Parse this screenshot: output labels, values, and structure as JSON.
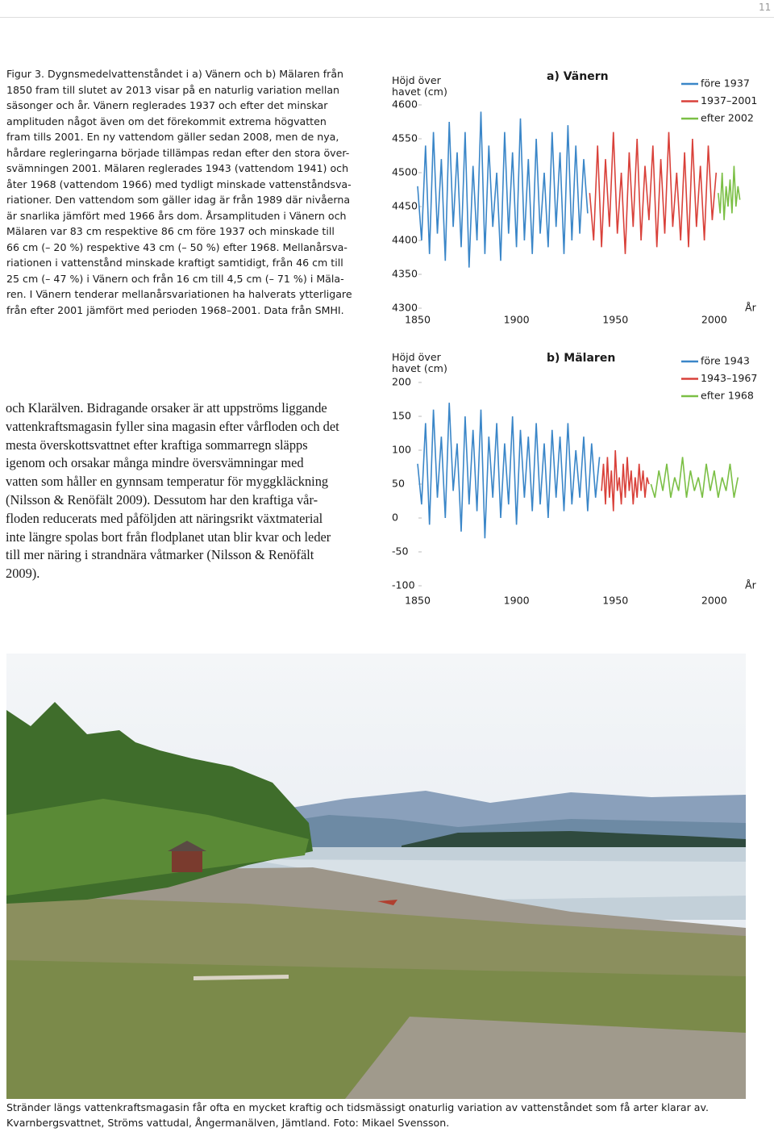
{
  "page_number": "11",
  "figure_caption": [
    "Figur 3. Dygnsmedelvattenståndet i a) Vänern och b) Mälaren från",
    "1850 fram till slutet av 2013 visar på en naturlig variation mellan",
    "säsonger och år. Vänern reglerades 1937 och efter det minskar",
    "amplituden något även om det förekommit extrema högvatten",
    "fram tills 2001. En ny vattendom gäller sedan 2008, men de nya,",
    "hårdare regleringarna började tillämpas redan efter den stora över-",
    "svämningen 2001. Mälaren reglerades 1943 (vattendom 1941) och",
    "åter 1968 (vattendom 1966) med tydligt minskade vattenståndsva-",
    "riationer. Den vattendom som gäller idag är från 1989 där nivåerna",
    "är snarlika jämfört med 1966 års dom. Årsamplituden i Vänern och",
    "Mälaren var 83 cm respektive 86 cm före 1937 och minskade till",
    "66 cm (– 20 %) respektive 43 cm (– 50 %) efter 1968. Mellanårsva-",
    "riationen i vattenstånd minskade kraftigt samtidigt, från 46 cm till",
    "25 cm (– 47 %) i Vänern och från 16 cm till 4,5 cm (– 71 %) i Mäla-",
    "ren. I Vänern tenderar mellanårsvariationen ha halverats ytterligare",
    "från efter 2001 jämfört med perioden 1968–2001. Data från SMHI."
  ],
  "chart_data": [
    {
      "type": "line",
      "title": "a) Vänern",
      "y_label": "Höjd över havet (cm)",
      "x_label": "År",
      "xlim": [
        1850,
        2018
      ],
      "xticks": [
        1850,
        1900,
        1950,
        2000
      ],
      "ylim": [
        4300,
        4600
      ],
      "yticks": [
        4300,
        4350,
        4400,
        4450,
        4500,
        4550,
        4600
      ],
      "series": [
        {
          "name": "före 1937",
          "color": "#3a86c8",
          "x": [
            1850,
            1852,
            1854,
            1856,
            1858,
            1860,
            1862,
            1864,
            1866,
            1868,
            1870,
            1872,
            1874,
            1876,
            1878,
            1880,
            1882,
            1884,
            1886,
            1888,
            1890,
            1892,
            1894,
            1896,
            1898,
            1900,
            1902,
            1904,
            1906,
            1908,
            1910,
            1912,
            1914,
            1916,
            1918,
            1920,
            1922,
            1924,
            1926,
            1928,
            1930,
            1932,
            1934,
            1936
          ],
          "values": [
            4480,
            4400,
            4540,
            4380,
            4560,
            4410,
            4520,
            4370,
            4575,
            4420,
            4530,
            4390,
            4560,
            4360,
            4510,
            4400,
            4590,
            4380,
            4540,
            4420,
            4500,
            4370,
            4560,
            4410,
            4530,
            4390,
            4580,
            4400,
            4520,
            4380,
            4550,
            4410,
            4500,
            4390,
            4560,
            4420,
            4530,
            4380,
            4570,
            4400,
            4540,
            4410,
            4520,
            4440
          ]
        },
        {
          "name": "1937–2001",
          "color": "#d9413a",
          "x": [
            1937,
            1939,
            1941,
            1943,
            1945,
            1947,
            1949,
            1951,
            1953,
            1955,
            1957,
            1959,
            1961,
            1963,
            1965,
            1967,
            1969,
            1971,
            1973,
            1975,
            1977,
            1979,
            1981,
            1983,
            1985,
            1987,
            1989,
            1991,
            1993,
            1995,
            1997,
            1999,
            2001
          ],
          "values": [
            4470,
            4400,
            4540,
            4390,
            4520,
            4420,
            4560,
            4410,
            4500,
            4380,
            4530,
            4420,
            4550,
            4400,
            4510,
            4430,
            4540,
            4390,
            4520,
            4410,
            4560,
            4420,
            4500,
            4400,
            4530,
            4390,
            4550,
            4420,
            4510,
            4400,
            4540,
            4430,
            4500
          ]
        },
        {
          "name": "efter 2002",
          "color": "#7bbf45",
          "x": [
            2002,
            2003,
            2004,
            2005,
            2006,
            2007,
            2008,
            2009,
            2010,
            2011,
            2012,
            2013
          ],
          "values": [
            4470,
            4440,
            4500,
            4430,
            4480,
            4450,
            4490,
            4440,
            4510,
            4450,
            4480,
            4460
          ]
        }
      ]
    },
    {
      "type": "line",
      "title": "b) Mälaren",
      "y_label": "Höjd över havet (cm)",
      "x_label": "År",
      "xlim": [
        1850,
        2018
      ],
      "xticks": [
        1850,
        1900,
        1950,
        2000
      ],
      "ylim": [
        -100,
        200
      ],
      "yticks": [
        -100,
        -50,
        0,
        50,
        100,
        150,
        200
      ],
      "series": [
        {
          "name": "före 1943",
          "color": "#3a86c8",
          "x": [
            1850,
            1852,
            1854,
            1856,
            1858,
            1860,
            1862,
            1864,
            1866,
            1868,
            1870,
            1872,
            1874,
            1876,
            1878,
            1880,
            1882,
            1884,
            1886,
            1888,
            1890,
            1892,
            1894,
            1896,
            1898,
            1900,
            1902,
            1904,
            1906,
            1908,
            1910,
            1912,
            1914,
            1916,
            1918,
            1920,
            1922,
            1924,
            1926,
            1928,
            1930,
            1932,
            1934,
            1936,
            1938,
            1940,
            1942
          ],
          "values": [
            80,
            20,
            140,
            -10,
            160,
            30,
            120,
            0,
            170,
            40,
            110,
            -20,
            150,
            20,
            130,
            10,
            160,
            -30,
            120,
            30,
            140,
            0,
            110,
            20,
            150,
            -10,
            130,
            30,
            120,
            10,
            140,
            20,
            110,
            0,
            130,
            30,
            120,
            10,
            140,
            20,
            100,
            30,
            120,
            10,
            110,
            30,
            90
          ]
        },
        {
          "name": "1943–1967",
          "color": "#d9413a",
          "x": [
            1943,
            1944,
            1945,
            1946,
            1947,
            1948,
            1949,
            1950,
            1951,
            1952,
            1953,
            1954,
            1955,
            1956,
            1957,
            1958,
            1959,
            1960,
            1961,
            1962,
            1963,
            1964,
            1965,
            1966,
            1967
          ],
          "values": [
            40,
            80,
            20,
            90,
            30,
            70,
            10,
            100,
            40,
            60,
            20,
            80,
            30,
            90,
            40,
            70,
            20,
            60,
            30,
            80,
            40,
            70,
            30,
            60,
            50
          ]
        },
        {
          "name": "efter 1968",
          "color": "#7bbf45",
          "x": [
            1968,
            1970,
            1972,
            1974,
            1976,
            1978,
            1980,
            1982,
            1984,
            1986,
            1988,
            1990,
            1992,
            1994,
            1996,
            1998,
            2000,
            2002,
            2004,
            2006,
            2008,
            2010,
            2012
          ],
          "values": [
            50,
            30,
            70,
            40,
            80,
            30,
            60,
            40,
            90,
            30,
            70,
            40,
            60,
            30,
            80,
            40,
            70,
            30,
            60,
            40,
            80,
            30,
            60
          ]
        }
      ]
    }
  ],
  "body_text": [
    "och Klarälven. Bidragande orsaker är att uppströms liggande",
    "vattenkraftsmagasin fyller sina magasin efter vårfloden och det",
    "mesta överskottsvattnet efter kraftiga sommarregn släpps",
    "igenom och orsakar många mindre översvämningar med",
    "vatten som håller en gynnsam temperatur för myggkläckning",
    "(Nilsson & Renöfält 2009). Dessutom har den kraftiga vår-",
    "floden reducerats med påföljden att näringsrikt växtmaterial",
    "inte längre spolas bort från flodplanet utan blir kvar och leder",
    "till mer näring i strandnära våtmarker (Nilsson & Renöfält",
    "2009)."
  ],
  "photo_caption": [
    "Stränder längs vattenkraftsmagasin får ofta en mycket kraftig och tidsmässigt onaturlig variation av vattenståndet som få arter klarar av.",
    "Kvarnbergsvattnet, Ströms vattudal, Ångermanälven, Jämtland. Foto: Mikael Svensson."
  ]
}
